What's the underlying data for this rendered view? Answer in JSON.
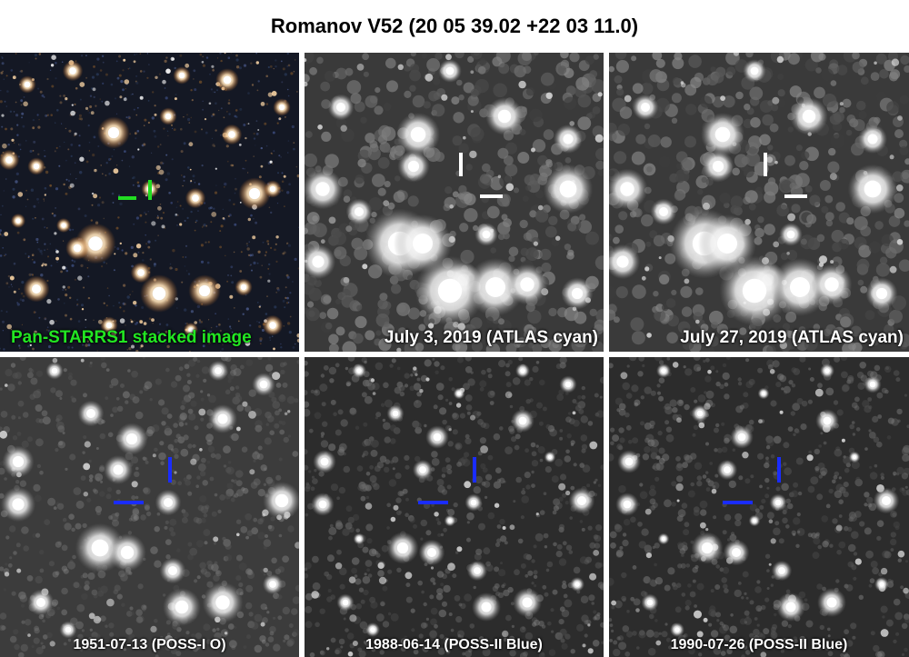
{
  "title": "Romanov V52 (20 05 39.02 +22 03 11.0)",
  "panels": [
    {
      "caption": "Pan-STARRS1 stacked image",
      "caption_color": "#22e622",
      "marker_color": "#22dd22",
      "style": "color"
    },
    {
      "caption": "July 3, 2019 (ATLAS cyan)",
      "caption_color": "#ffffff",
      "marker_color": "#ffffff",
      "style": "atlas"
    },
    {
      "caption": "July 27, 2019 (ATLAS cyan)",
      "caption_color": "#ffffff",
      "marker_color": "#ffffff",
      "style": "atlas"
    },
    {
      "caption": "1951-07-13 (POSS-I O)",
      "caption_color": "#ffffff",
      "marker_color": "#1a2cff",
      "style": "poss1"
    },
    {
      "caption": "1988-06-14 (POSS-II Blue)",
      "caption_color": "#ffffff",
      "marker_color": "#1a2cff",
      "style": "poss2"
    },
    {
      "caption": "1990-07-26 (POSS-II Blue)",
      "caption_color": "#ffffff",
      "marker_color": "#1a2cff",
      "style": "poss2"
    }
  ]
}
